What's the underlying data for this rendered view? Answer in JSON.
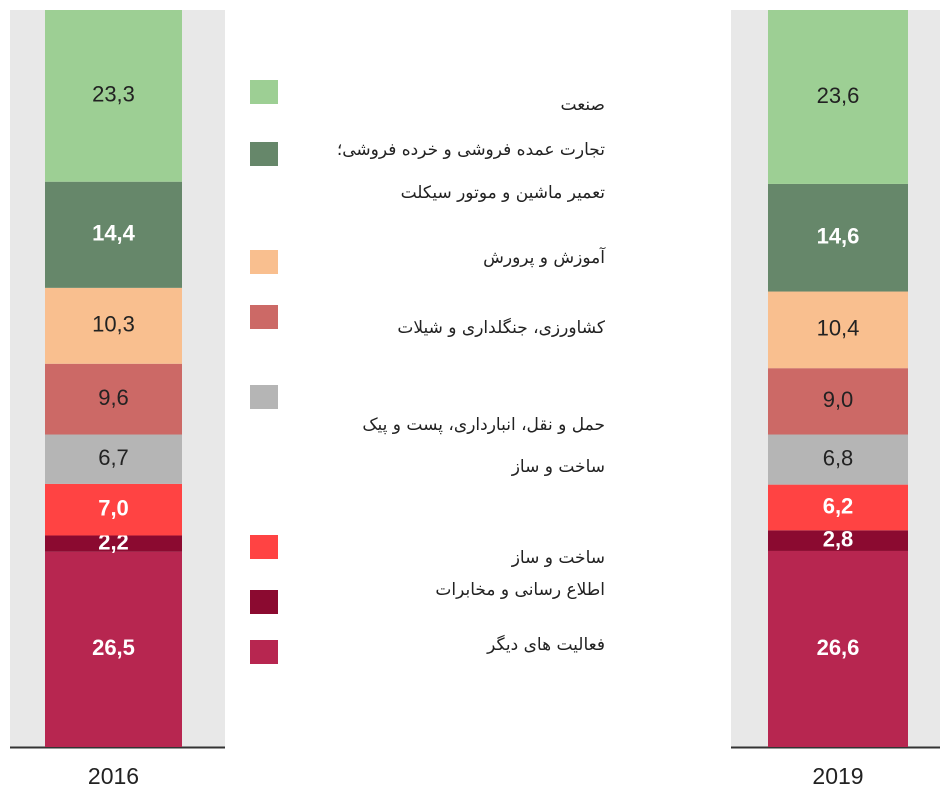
{
  "chart_data": {
    "type": "stacked_bar",
    "categories": [
      "2016",
      "2019"
    ],
    "ylim": [
      0,
      100
    ],
    "series": [
      {
        "name": [
          "صنعت"
        ],
        "color": "#9dcf94",
        "label_color": "#222222",
        "values": [
          23.3,
          23.6
        ],
        "value_labels": [
          "23,3",
          "23,6"
        ]
      },
      {
        "name": [
          "تجارت عمده فروشی و خرده فروشی؛",
          "تعمیر ماشین و موتور سیکلت"
        ],
        "color": "#66876a",
        "label_color": "#ffffff",
        "values": [
          14.4,
          14.6
        ],
        "value_labels": [
          "14,4",
          "14,6"
        ]
      },
      {
        "name": [
          "آموزش و پرورش"
        ],
        "color": "#f9bf8f",
        "label_color": "#222222",
        "values": [
          10.3,
          10.4
        ],
        "value_labels": [
          "10,3",
          "10,4"
        ]
      },
      {
        "name": [
          "کشاورزی، جنگلداری و شیلات"
        ],
        "color": "#cc6966",
        "label_color": "#222222",
        "values": [
          9.6,
          9.0
        ],
        "value_labels": [
          "9,6",
          "9,0"
        ]
      },
      {
        "name": [
          "حمل و نقل، انبارداری، پست و پیک",
          "ساخت و ساز"
        ],
        "color": "#b5b5b5",
        "label_color": "#222222",
        "values": [
          6.7,
          6.8
        ],
        "value_labels": [
          "6,7",
          "6,8"
        ]
      },
      {
        "name": [
          "ساخت و ساز"
        ],
        "color": "#ff4343",
        "label_color": "#ffffff",
        "values": [
          7.0,
          6.2
        ],
        "value_labels": [
          "7,0",
          "6,2"
        ]
      },
      {
        "name": [
          "اطلاع رسانی و مخابرات"
        ],
        "color": "#8b0a30",
        "label_color": "#ffffff",
        "values": [
          2.2,
          2.8
        ],
        "value_labels": [
          "2,2",
          "2,8"
        ]
      },
      {
        "name": [
          "فعالیت های دیگر"
        ],
        "color": "#b72650",
        "label_color": "#ffffff",
        "values": [
          26.5,
          26.6
        ],
        "value_labels": [
          "26,5",
          "26,6"
        ]
      }
    ]
  }
}
